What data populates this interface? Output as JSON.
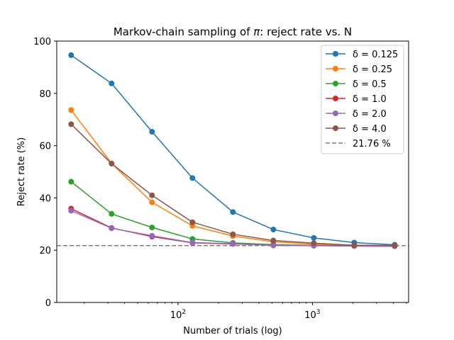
{
  "chart_data": {
    "type": "line",
    "title_prefix": "Markov-chain sampling of ",
    "title_symbol": "π",
    "title_suffix": ": reject rate vs. N",
    "xlabel": "Number of trials (log)",
    "ylabel": "Reject rate (%)",
    "x_scale": "log",
    "xlim": [
      12.5,
      5200
    ],
    "ylim": [
      0,
      100
    ],
    "y_ticks": [
      0,
      20,
      40,
      60,
      80,
      100
    ],
    "x_major_ticks": [
      {
        "value": 100,
        "base": "10",
        "exp": "2"
      },
      {
        "value": 1000,
        "base": "10",
        "exp": "3"
      }
    ],
    "x_minor_ticks": [
      20,
      30,
      40,
      50,
      60,
      70,
      80,
      90,
      200,
      300,
      400,
      500,
      600,
      700,
      800,
      900,
      2000,
      3000,
      4000,
      5000
    ],
    "x": [
      16,
      32,
      64,
      128,
      256,
      512,
      1024,
      2048,
      4096
    ],
    "grid": false,
    "legend_position": "top-right",
    "series": [
      {
        "name": "δ = 0.125",
        "color": "#1f77b4",
        "values": [
          94.6,
          83.8,
          65.3,
          47.6,
          34.6,
          27.9,
          24.7,
          22.9,
          22.1
        ]
      },
      {
        "name": "δ = 0.25",
        "color": "#ff7f0e",
        "values": [
          73.6,
          53.2,
          38.3,
          29.3,
          25.4,
          23.2,
          22.3,
          21.9,
          21.7
        ]
      },
      {
        "name": "δ = 0.5",
        "color": "#2ca02c",
        "values": [
          46.2,
          33.9,
          28.7,
          24.3,
          22.8,
          22.1,
          21.8,
          21.6,
          21.6
        ]
      },
      {
        "name": "δ = 1.0",
        "color": "#d62728",
        "values": [
          35.9,
          28.5,
          25.2,
          22.8,
          22.4,
          21.9,
          21.8,
          21.6,
          21.5
        ]
      },
      {
        "name": "δ = 2.0",
        "color": "#9467bd",
        "values": [
          35.1,
          28.4,
          25.5,
          22.9,
          22.5,
          21.8,
          21.7,
          21.6,
          21.5
        ]
      },
      {
        "name": "δ = 4.0",
        "color": "#8c564b",
        "values": [
          68.2,
          53.1,
          41.0,
          30.7,
          26.1,
          23.7,
          22.7,
          21.9,
          21.8
        ]
      }
    ],
    "reference_line": {
      "value": 21.76,
      "label": "21.76 %",
      "color": "#7f7f7f",
      "style": "dashed"
    }
  }
}
